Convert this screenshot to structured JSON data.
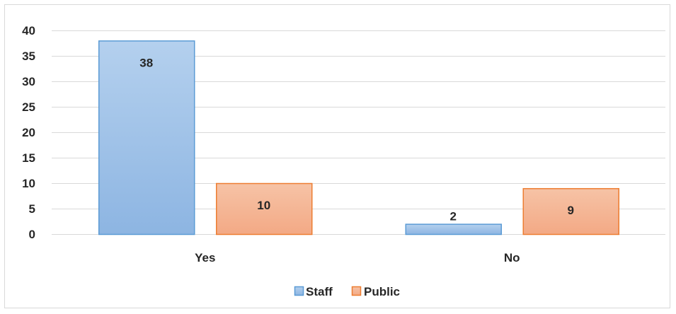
{
  "chart_data": {
    "type": "bar",
    "categories": [
      "Yes",
      "No"
    ],
    "series": [
      {
        "name": "Staff",
        "values": [
          38,
          2
        ],
        "color": "#9dc3e6",
        "stroke": "#5b9bd5"
      },
      {
        "name": "Public",
        "values": [
          10,
          9
        ],
        "color": "#f4b183",
        "stroke": "#ed7d31"
      }
    ],
    "yticks": [
      0,
      5,
      10,
      15,
      20,
      25,
      30,
      35,
      40
    ],
    "ylim": [
      0,
      40
    ],
    "grid": true,
    "legend_position": "bottom"
  }
}
